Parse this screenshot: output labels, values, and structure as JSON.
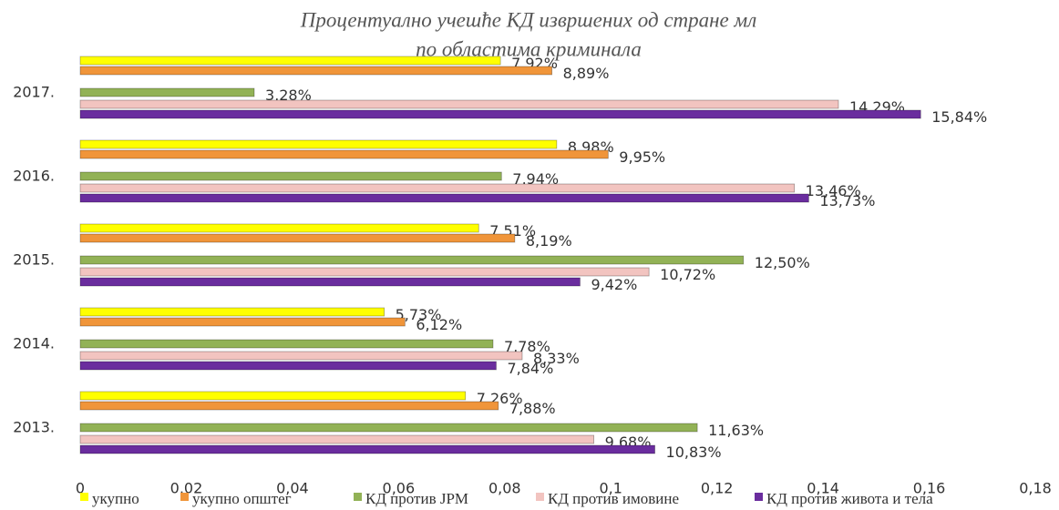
{
  "chart_data": {
    "type": "bar",
    "orientation": "horizontal",
    "title": [
      "Процентуално учешће КД извршених од стране мл",
      "по областима криминала"
    ],
    "categories": [
      "2013.",
      "2014.",
      "2015.",
      "2016.",
      "2017."
    ],
    "series": [
      {
        "name": "укупно",
        "color": "#ffff00",
        "values": [
          0.0726,
          0.0573,
          0.0751,
          0.0898,
          0.0792
        ],
        "value_labels": [
          "7,26%",
          "5,73%",
          "7,51%",
          "8,98%",
          "7,92%"
        ]
      },
      {
        "name": "укупно општег",
        "color": "#f0953a",
        "values": [
          0.0788,
          0.0612,
          0.0819,
          0.0995,
          0.0889
        ],
        "value_labels": [
          "7,88%",
          "6,12%",
          "8,19%",
          "9,95%",
          "8,89%"
        ]
      },
      {
        "name": "КД против ЈРМ",
        "color": "#92b256",
        "values": [
          0.1163,
          0.0778,
          0.125,
          0.0794,
          0.0328
        ],
        "value_labels": [
          "11,63%",
          "7,78%",
          "12,50%",
          "7,94%",
          "3,28%"
        ]
      },
      {
        "name": "КД против имовине",
        "color": "#f2c4c0",
        "values": [
          0.0968,
          0.0833,
          0.1072,
          0.1346,
          0.1429
        ],
        "value_labels": [
          "9,68%",
          "8,33%",
          "10,72%",
          "13,46%",
          "14,29%"
        ]
      },
      {
        "name": "КД против живота и тела",
        "color": "#6a2d9e",
        "values": [
          0.1083,
          0.0784,
          0.0942,
          0.1373,
          0.1584
        ],
        "value_labels": [
          "10,83%",
          "7,84%",
          "9,42%",
          "13,73%",
          "15,84%"
        ]
      }
    ],
    "xlim": [
      0,
      0.18
    ],
    "xticks": [
      0,
      {
        "value": 0.02,
        "label": "0,02"
      },
      {
        "value": 0.04,
        "label": "0,04"
      },
      {
        "value": 0.06,
        "label": "0,06"
      },
      {
        "value": 0.08,
        "label": "0,08"
      },
      {
        "value": 0.1,
        "label": "0,1"
      },
      {
        "value": 0.12,
        "label": "0,12"
      },
      {
        "value": 0.14,
        "label": "0,14"
      },
      {
        "value": 0.16,
        "label": "0,16"
      },
      {
        "value": 0.18,
        "label": "0,18"
      }
    ],
    "legend": "bottom"
  }
}
